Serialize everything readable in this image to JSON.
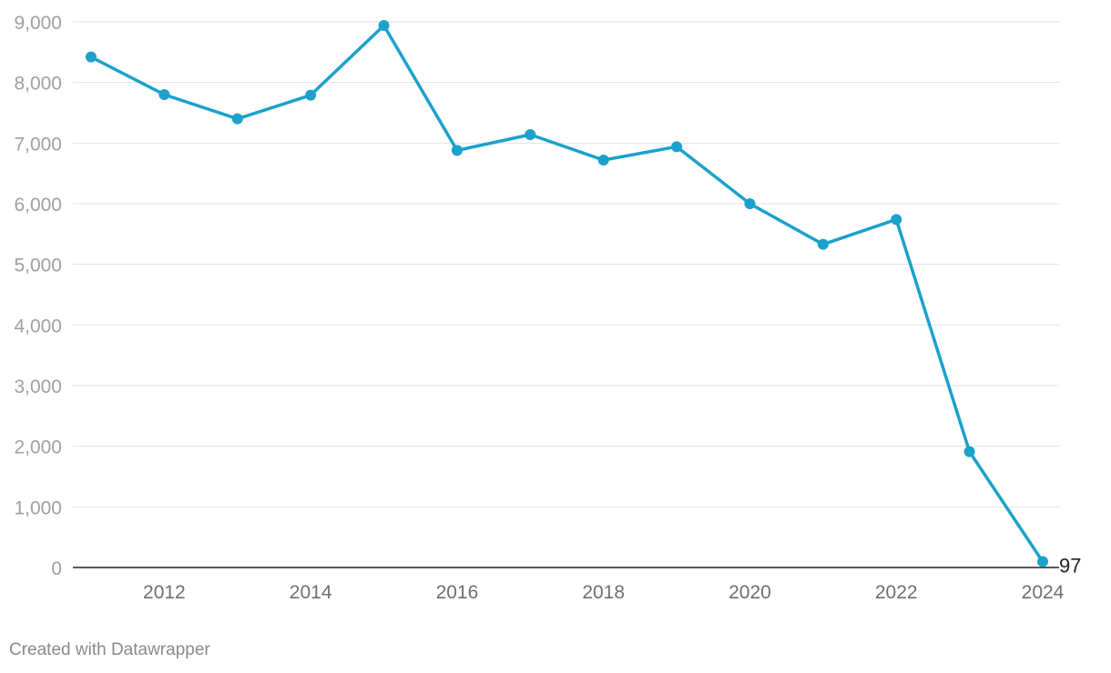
{
  "chart_data": {
    "type": "line",
    "title": "",
    "xlabel": "",
    "ylabel": "",
    "x": [
      2011,
      2012,
      2013,
      2014,
      2015,
      2016,
      2017,
      2018,
      2019,
      2020,
      2021,
      2022,
      2023,
      2024
    ],
    "series": [
      {
        "values": [
          8420,
          7800,
          7400,
          7790,
          8940,
          6880,
          7140,
          6720,
          6940,
          6000,
          5330,
          5740,
          1910,
          97
        ],
        "color": "#1ba1cc"
      }
    ],
    "ylim": [
      0,
      9000
    ],
    "xlim": [
      2011,
      2024
    ],
    "y_ticks": [
      "0",
      "1,000",
      "2,000",
      "3,000",
      "4,000",
      "5,000",
      "6,000",
      "7,000",
      "8,000",
      "9,000"
    ],
    "x_ticks": [
      "2012",
      "2014",
      "2016",
      "2018",
      "2020",
      "2022",
      "2024"
    ],
    "end_label": "97",
    "grid": true
  },
  "footer": {
    "credit": "Created with Datawrapper"
  }
}
